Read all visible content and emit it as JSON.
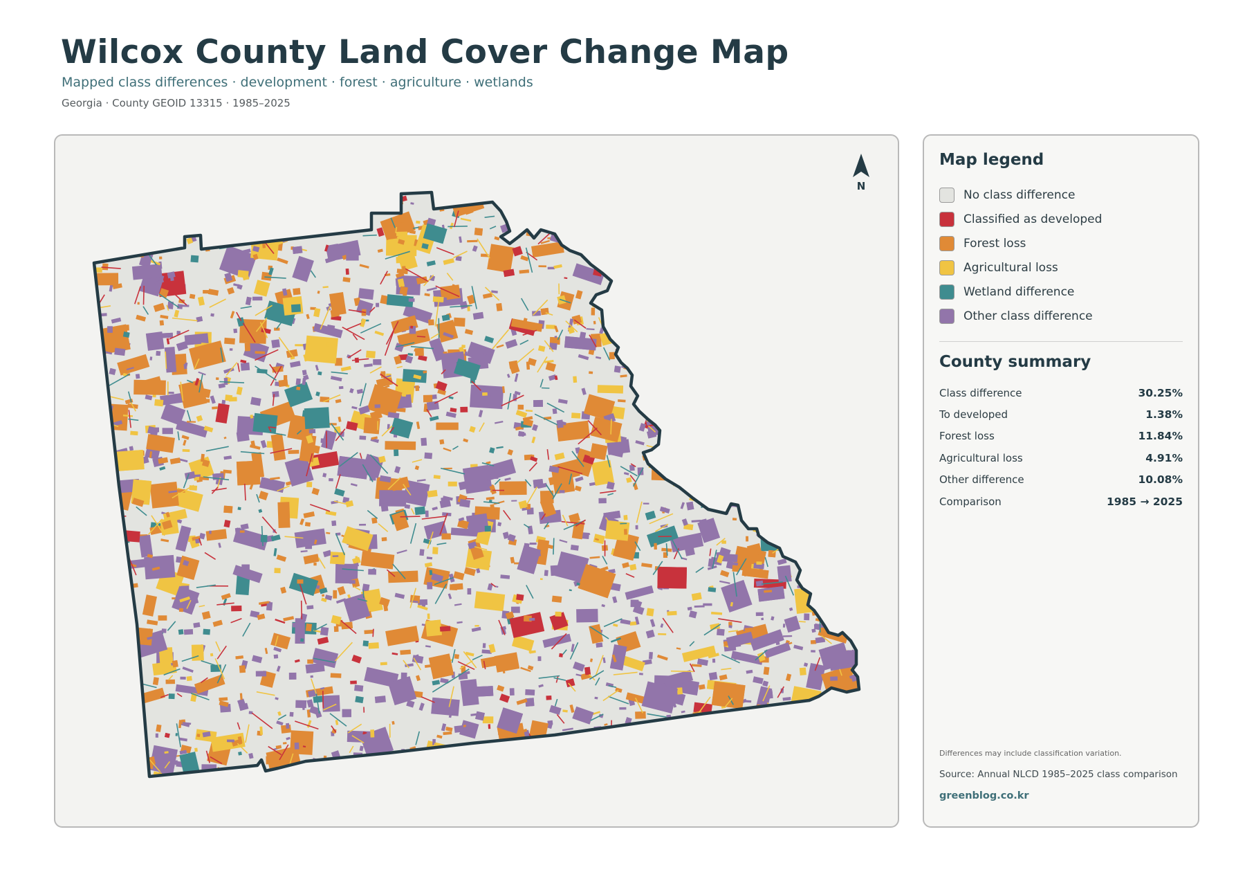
{
  "header": {
    "title": "Wilcox County Land Cover Change Map",
    "subtitle": "Mapped class differences · development · forest · agriculture · wetlands",
    "meta": "Georgia · County GEOID 13315 · 1985–2025"
  },
  "map": {
    "north_label": "N",
    "colors": {
      "no_change": "#e3e4e0",
      "developed": "#c8323c",
      "forest_loss": "#e08a36",
      "agricultural_loss": "#f0c443",
      "wetland": "#3f8c8f",
      "other": "#9275aa",
      "boundary": "#243b45"
    }
  },
  "legend": {
    "title": "Map legend",
    "items": [
      {
        "label": "No class difference",
        "color": "#e3e4e0"
      },
      {
        "label": "Classified as developed",
        "color": "#c8323c"
      },
      {
        "label": "Forest loss",
        "color": "#e08a36"
      },
      {
        "label": "Agricultural loss",
        "color": "#f0c443"
      },
      {
        "label": "Wetland difference",
        "color": "#3f8c8f"
      },
      {
        "label": "Other class difference",
        "color": "#9275aa"
      }
    ]
  },
  "summary": {
    "title": "County summary",
    "rows": [
      {
        "key": "Class difference",
        "value": "30.25%"
      },
      {
        "key": "To developed",
        "value": "1.38%"
      },
      {
        "key": "Forest loss",
        "value": "11.84%"
      },
      {
        "key": "Agricultural loss",
        "value": "4.91%"
      },
      {
        "key": "Other difference",
        "value": "10.08%"
      },
      {
        "key": "Comparison",
        "value": "1985 → 2025"
      }
    ]
  },
  "footer": {
    "note": "Differences may include classification variation.",
    "source": "Source: Annual NLCD 1985–2025 class comparison",
    "site": "greenblog.co.kr"
  }
}
